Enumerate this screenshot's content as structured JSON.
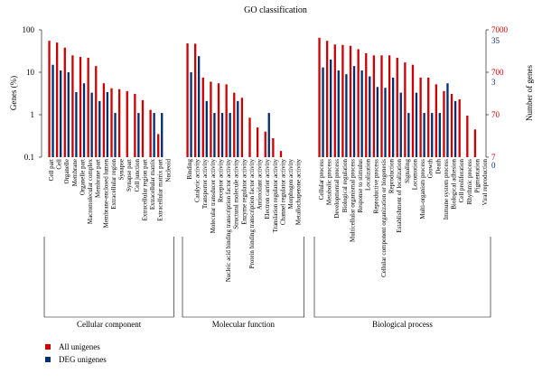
{
  "chart_data": {
    "type": "bar",
    "title": "GO classification",
    "ylabel_left": "Genes (%)",
    "ylabel_right": "Number of genes",
    "left_axis": {
      "scale": "log",
      "ylim": [
        0.1,
        100
      ],
      "ticks": [
        "0.1",
        "1",
        "10",
        "100"
      ]
    },
    "right_axis_all": {
      "color": "#cc0000",
      "ticks": [
        "7",
        "70",
        "700",
        "7000"
      ]
    },
    "right_axis_deg": {
      "color": "#002e6e",
      "ticks": [
        "0",
        "3",
        "35"
      ]
    },
    "series": [
      {
        "name": "All unigenes",
        "color": "#cc0000"
      },
      {
        "name": "DEG unigenes",
        "color": "#002e6e"
      }
    ],
    "groups": [
      {
        "name": "Cellular component",
        "categories": [
          {
            "label": "Cell part",
            "all": 55,
            "deg": 15
          },
          {
            "label": "Cell",
            "all": 50,
            "deg": 11
          },
          {
            "label": "Organelle",
            "all": 38,
            "deg": 10
          },
          {
            "label": "Membrane",
            "all": 25,
            "deg": 3.4
          },
          {
            "label": "Organelle part",
            "all": 23,
            "deg": 5.5
          },
          {
            "label": "Macromolecular complex",
            "all": 22,
            "deg": 3.3
          },
          {
            "label": "Membrane part",
            "all": 14,
            "deg": 2.1
          },
          {
            "label": "Membrane-enclosed lumen",
            "all": 5.5,
            "deg": 3.4
          },
          {
            "label": "Extracellular region",
            "all": 4.2,
            "deg": 1.1
          },
          {
            "label": "Synapse",
            "all": 4.0,
            "deg": null
          },
          {
            "label": "Synapse part",
            "all": 3.6,
            "deg": null
          },
          {
            "label": "Cell junction",
            "all": 3.1,
            "deg": 1.1
          },
          {
            "label": "Extracellular region part",
            "all": 2.2,
            "deg": null
          },
          {
            "label": "Extracellular matrix",
            "all": 1.3,
            "deg": 1.1
          },
          {
            "label": "Extracellular matrix part",
            "all": 0.35,
            "deg": 1.1
          },
          {
            "label": "Nucleoid",
            "all": null,
            "deg": null
          }
        ]
      },
      {
        "name": "Molecular function",
        "categories": [
          {
            "label": "Binding",
            "all": 48,
            "deg": 10
          },
          {
            "label": "Catalytic activity",
            "all": 47,
            "deg": 24
          },
          {
            "label": "Transporter activity",
            "all": 7.5,
            "deg": 2.1
          },
          {
            "label": "Molecular transducer activity",
            "all": 6.0,
            "deg": 1.1
          },
          {
            "label": "Receptor activity",
            "all": 5.5,
            "deg": 1.1
          },
          {
            "label": "Nucleic acid binding transcription factor activity",
            "all": 5.2,
            "deg": 1.1
          },
          {
            "label": "Structural molecule activity",
            "all": 3.3,
            "deg": 2.1
          },
          {
            "label": "Enzyme regulator activity",
            "all": 2.5,
            "deg": null
          },
          {
            "label": "Protein binding transcription factor activity",
            "all": 0.85,
            "deg": null
          },
          {
            "label": "Antioxidant activity",
            "all": 0.5,
            "deg": null
          },
          {
            "label": "Electron carrier activity",
            "all": 0.4,
            "deg": 1.1
          },
          {
            "label": "Translation regulator activity",
            "all": 0.28,
            "deg": null
          },
          {
            "label": "Channel regulator activity",
            "all": 0.14,
            "deg": null
          },
          {
            "label": "Morphogen activity",
            "all": null,
            "deg": null
          },
          {
            "label": "Metallochaperone activity",
            "all": null,
            "deg": null
          }
        ]
      },
      {
        "name": "Biological process",
        "categories": [
          {
            "label": "Cellular process",
            "all": 65,
            "deg": 13
          },
          {
            "label": "Metabolic process",
            "all": 55,
            "deg": 20
          },
          {
            "label": "Developmental process",
            "all": 45,
            "deg": 11
          },
          {
            "label": "Biological regulation",
            "all": 44,
            "deg": 9
          },
          {
            "label": "Multicellular organismal process",
            "all": 42,
            "deg": 14
          },
          {
            "label": "Response to stimulus",
            "all": 35,
            "deg": 11
          },
          {
            "label": "Localization",
            "all": 28,
            "deg": 8
          },
          {
            "label": "Reproductive process",
            "all": 25,
            "deg": 4.5
          },
          {
            "label": "Cellular component organization or biogenesis",
            "all": 25,
            "deg": 4.3
          },
          {
            "label": "Reproduction",
            "all": 25,
            "deg": 7.5
          },
          {
            "label": "Establishment of localization",
            "all": 22,
            "deg": 3.3
          },
          {
            "label": "Signaling",
            "all": 17,
            "deg": 1.1
          },
          {
            "label": "Locomotion",
            "all": 15,
            "deg": 3.3
          },
          {
            "label": "Multi-organism process",
            "all": 7.5,
            "deg": 1.1
          },
          {
            "label": "Growth",
            "all": 7.5,
            "deg": 1.1
          },
          {
            "label": "Death",
            "all": 5.2,
            "deg": 1.1
          },
          {
            "label": "Immune system process",
            "all": 3.6,
            "deg": 5.5
          },
          {
            "label": "Biological adhesion",
            "all": 3.1,
            "deg": 2.1
          },
          {
            "label": "Cell proliferation",
            "all": 2.3,
            "deg": null
          },
          {
            "label": "Rhythmic process",
            "all": 0.95,
            "deg": null
          },
          {
            "label": "Pigmentation",
            "all": 0.45,
            "deg": null
          },
          {
            "label": "Viral reproduction",
            "all": null,
            "deg": null
          }
        ]
      }
    ]
  }
}
